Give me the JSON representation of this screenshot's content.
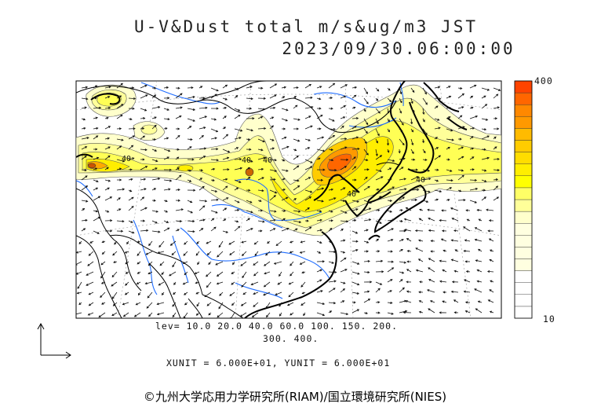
{
  "title": {
    "line1": "U-V&Dust total m/s&ug/m3 JST",
    "line2": "2023/09/30.06:00:00"
  },
  "map": {
    "contour_labels": [
      "40",
      "40",
      "40",
      "40",
      "40"
    ]
  },
  "legend": {
    "levels_line1": "lev= 10.0 20.0 40.0 60.0 100. 150. 200.",
    "levels_line2": "300. 400.",
    "units": "XUNIT = 6.000E+01, YUNIT = 6.000E+01",
    "scale_max": "400",
    "scale_min": "10",
    "levels": [
      10,
      20,
      40,
      60,
      100,
      150,
      200,
      300,
      400
    ],
    "colors": [
      "#ffffcc",
      "#ffff99",
      "#ffff66",
      "#ffff00",
      "#ffee00",
      "#ffdd00",
      "#ffcc00",
      "#ffbb00",
      "#ff9900",
      "#ff8800",
      "#ff6600",
      "#ff4400"
    ]
  },
  "copyright": "©九州大学応用力学研究所(RIAM)/国立環境研究所(NIES)"
}
